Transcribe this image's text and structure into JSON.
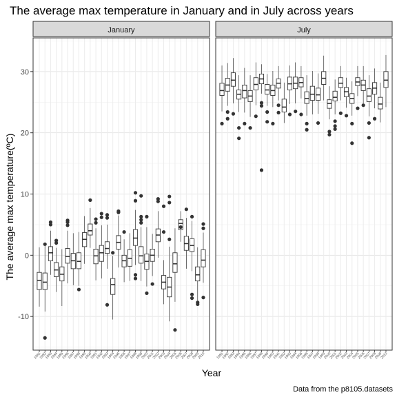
{
  "chart_data": {
    "type": "boxplot",
    "title": "The average max temperature in January and in July across years",
    "xlabel": "Year",
    "ylabel": "The average max temperature(ºC)",
    "caption": "Data from the p8105.datasets",
    "ylim": [
      -15.5,
      35.5
    ],
    "yticks": [
      -10,
      0,
      10,
      20,
      30
    ],
    "grid": true,
    "categories": [
      "1981",
      "1982",
      "1983",
      "1984",
      "1985",
      "1986",
      "1987",
      "1988",
      "1989",
      "1990",
      "1991",
      "1992",
      "1993",
      "1994",
      "1995",
      "1996",
      "1997",
      "1998",
      "1999",
      "2000",
      "2001",
      "2002",
      "2003",
      "2004",
      "2005",
      "2006",
      "2007",
      "2008",
      "2009",
      "2010"
    ],
    "facets": [
      {
        "name": "January",
        "boxes": [
          {
            "year": "1981",
            "q1": -5.6,
            "median": -4.1,
            "q3": -2.8,
            "lower": -8.4,
            "upper": 1.3,
            "outliers": []
          },
          {
            "year": "1982",
            "q1": -5.6,
            "median": -4.4,
            "q3": -2.9,
            "lower": -9.2,
            "upper": 1.5,
            "outliers": [
              -13.5,
              1.8
            ]
          },
          {
            "year": "1983",
            "q1": -0.9,
            "median": 0.4,
            "q3": 1.4,
            "lower": -3.2,
            "upper": 4.0,
            "outliers": [
              5.0,
              5.4
            ]
          },
          {
            "year": "1984",
            "q1": -3.5,
            "median": -2.4,
            "q3": -1.2,
            "lower": -6.0,
            "upper": 1.2,
            "outliers": [
              2.0,
              2.4
            ]
          },
          {
            "year": "1985",
            "q1": -4.2,
            "median": -3.1,
            "q3": -1.9,
            "lower": -8.3,
            "upper": 1.0,
            "outliers": []
          },
          {
            "year": "1986",
            "q1": -1.3,
            "median": -0.2,
            "q3": 1.1,
            "lower": -4.6,
            "upper": 4.0,
            "outliers": [
              4.9,
              5.4,
              5.7
            ]
          },
          {
            "year": "1987",
            "q1": -2.2,
            "median": -0.9,
            "q3": 0.3,
            "lower": -4.9,
            "upper": 3.6,
            "outliers": []
          },
          {
            "year": "1988",
            "q1": -2.2,
            "median": -1.0,
            "q3": 0.4,
            "lower": -5.0,
            "upper": 3.8,
            "outliers": [
              -5.6
            ]
          },
          {
            "year": "1989",
            "q1": 1.4,
            "median": 2.6,
            "q3": 3.7,
            "lower": -1.4,
            "upper": 6.4,
            "outliers": []
          },
          {
            "year": "1990",
            "q1": 3.3,
            "median": 4.0,
            "q3": 5.1,
            "lower": 1.2,
            "upper": 7.7,
            "outliers": [
              9.0
            ]
          },
          {
            "year": "1991",
            "q1": -1.4,
            "median": -0.1,
            "q3": 1.0,
            "lower": -4.1,
            "upper": 4.4,
            "outliers": [
              5.3,
              5.9
            ]
          },
          {
            "year": "1992",
            "q1": -1.0,
            "median": 0.4,
            "q3": 1.6,
            "lower": -3.8,
            "upper": 4.9,
            "outliers": [
              6.2,
              6.8
            ]
          },
          {
            "year": "1993",
            "q1": 0.3,
            "median": 1.1,
            "q3": 2.2,
            "lower": -2.2,
            "upper": 5.0,
            "outliers": [
              -8.1,
              6.1,
              6.6
            ]
          },
          {
            "year": "1994",
            "q1": -6.4,
            "median": -4.8,
            "q3": -3.8,
            "lower": -10.5,
            "upper": -0.1,
            "outliers": [
              0.4
            ]
          },
          {
            "year": "1995",
            "q1": 1.0,
            "median": 2.1,
            "q3": 3.2,
            "lower": -2.0,
            "upper": 6.5,
            "outliers": [
              7.0,
              7.2
            ]
          },
          {
            "year": "1996",
            "q1": -1.9,
            "median": -0.9,
            "q3": 0.0,
            "lower": -4.4,
            "upper": 2.6,
            "outliers": [
              3.8
            ]
          },
          {
            "year": "1997",
            "q1": -1.8,
            "median": -0.5,
            "q3": 0.9,
            "lower": -4.2,
            "upper": 3.6,
            "outliers": []
          },
          {
            "year": "1998",
            "q1": 1.6,
            "median": 2.8,
            "q3": 4.2,
            "lower": -1.6,
            "upper": 7.4,
            "outliers": [
              -3.2,
              -3.8,
              8.9,
              10.2
            ]
          },
          {
            "year": "1999",
            "q1": -1.3,
            "median": -0.1,
            "q3": 1.4,
            "lower": -4.2,
            "upper": 4.6,
            "outliers": [
              5.3,
              5.8,
              6.3,
              9.7
            ]
          },
          {
            "year": "2000",
            "q1": -2.3,
            "median": -1.0,
            "q3": 0.2,
            "lower": -5.1,
            "upper": 4.6,
            "outliers": [
              -6.2,
              6.3
            ]
          },
          {
            "year": "2001",
            "q1": -1.0,
            "median": 0.0,
            "q3": 1.0,
            "lower": -3.4,
            "upper": 3.5,
            "outliers": [
              -4.7
            ]
          },
          {
            "year": "2002",
            "q1": 2.2,
            "median": 3.3,
            "q3": 4.3,
            "lower": -0.4,
            "upper": 7.2,
            "outliers": [
              8.8,
              9.2
            ]
          },
          {
            "year": "2003",
            "q1": -5.5,
            "median": -4.4,
            "q3": -3.3,
            "lower": -8.0,
            "upper": -0.8,
            "outliers": [
              3.8,
              8.0
            ]
          },
          {
            "year": "2004",
            "q1": -6.8,
            "median": -5.2,
            "q3": -3.6,
            "lower": -10.8,
            "upper": 1.4,
            "outliers": [
              2.6,
              8.6,
              9.6
            ]
          },
          {
            "year": "2005",
            "q1": -2.8,
            "median": -1.4,
            "q3": 0.4,
            "lower": -7.6,
            "upper": 4.4,
            "outliers": [
              -12.2
            ]
          },
          {
            "year": "2006",
            "q1": 4.2,
            "median": 5.2,
            "q3": 5.8,
            "lower": 2.2,
            "upper": 7.2,
            "outliers": [
              4.6
            ]
          },
          {
            "year": "2007",
            "q1": 0.8,
            "median": 1.9,
            "q3": 3.1,
            "lower": -2.2,
            "upper": 6.1,
            "outliers": [
              7.5
            ]
          },
          {
            "year": "2008",
            "q1": 0.6,
            "median": 1.6,
            "q3": 2.7,
            "lower": -2.6,
            "upper": 5.6,
            "outliers": [
              -6.4,
              -7.0,
              6.3
            ]
          },
          {
            "year": "2009",
            "q1": -4.2,
            "median": -3.2,
            "q3": -1.9,
            "lower": -7.4,
            "upper": 1.3,
            "outliers": [
              -7.7,
              -8.0
            ]
          },
          {
            "year": "2010",
            "q1": -1.9,
            "median": -0.8,
            "q3": 0.9,
            "lower": -4.5,
            "upper": 3.7,
            "outliers": [
              -6.9,
              4.4,
              5.1
            ]
          }
        ]
      },
      {
        "name": "July",
        "boxes": [
          {
            "year": "1981",
            "q1": 26.1,
            "median": 26.9,
            "q3": 28.1,
            "lower": 23.5,
            "upper": 31.0,
            "outliers": [
              21.5
            ]
          },
          {
            "year": "1982",
            "q1": 26.8,
            "median": 27.8,
            "q3": 28.9,
            "lower": 24.4,
            "upper": 31.4,
            "outliers": [
              22.3,
              23.4
            ]
          },
          {
            "year": "1983",
            "q1": 27.6,
            "median": 28.6,
            "q3": 29.8,
            "lower": 24.8,
            "upper": 32.2,
            "outliers": [
              23.1
            ]
          },
          {
            "year": "1984",
            "q1": 25.5,
            "median": 26.3,
            "q3": 27.0,
            "lower": 23.4,
            "upper": 29.4,
            "outliers": [
              19.1,
              20.8
            ]
          },
          {
            "year": "1985",
            "q1": 25.7,
            "median": 26.9,
            "q3": 27.8,
            "lower": 23.3,
            "upper": 30.6,
            "outliers": [
              21.5
            ]
          },
          {
            "year": "1986",
            "q1": 25.1,
            "median": 26.0,
            "q3": 26.9,
            "lower": 22.6,
            "upper": 29.4,
            "outliers": [
              20.8
            ]
          },
          {
            "year": "1987",
            "q1": 27.0,
            "median": 27.9,
            "q3": 29.0,
            "lower": 24.5,
            "upper": 31.5,
            "outliers": [
              22.7
            ]
          },
          {
            "year": "1988",
            "q1": 28.0,
            "median": 28.8,
            "q3": 29.6,
            "lower": 26.4,
            "upper": 31.2,
            "outliers": [
              13.9,
              24.4,
              24.9
            ]
          },
          {
            "year": "1989",
            "q1": 26.3,
            "median": 27.0,
            "q3": 27.9,
            "lower": 24.4,
            "upper": 29.6,
            "outliers": [
              21.8,
              23.4
            ]
          },
          {
            "year": "1990",
            "q1": 26.1,
            "median": 26.9,
            "q3": 27.8,
            "lower": 24.2,
            "upper": 30.1,
            "outliers": [
              21.5
            ]
          },
          {
            "year": "1991",
            "q1": 27.3,
            "median": 28.1,
            "q3": 28.8,
            "lower": 25.3,
            "upper": 30.9,
            "outliers": [
              23.3,
              24.5
            ]
          },
          {
            "year": "1992",
            "q1": 23.4,
            "median": 24.2,
            "q3": 25.5,
            "lower": 21.6,
            "upper": 28.2,
            "outliers": []
          },
          {
            "year": "1993",
            "q1": 27.0,
            "median": 28.0,
            "q3": 29.1,
            "lower": 24.7,
            "upper": 31.0,
            "outliers": [
              23.0
            ]
          },
          {
            "year": "1994",
            "q1": 27.2,
            "median": 28.1,
            "q3": 29.1,
            "lower": 24.8,
            "upper": 31.5,
            "outliers": [
              23.5
            ]
          },
          {
            "year": "1995",
            "q1": 27.5,
            "median": 28.2,
            "q3": 29.0,
            "lower": 25.6,
            "upper": 30.9,
            "outliers": [
              23.0
            ]
          },
          {
            "year": "1996",
            "q1": 24.8,
            "median": 25.6,
            "q3": 26.7,
            "lower": 22.8,
            "upper": 29.4,
            "outliers": [
              20.5,
              21.5
            ]
          },
          {
            "year": "1997",
            "q1": 25.3,
            "median": 26.3,
            "q3": 27.6,
            "lower": 23.0,
            "upper": 30.1,
            "outliers": []
          },
          {
            "year": "1998",
            "q1": 25.3,
            "median": 26.2,
            "q3": 27.3,
            "lower": 23.1,
            "upper": 29.7,
            "outliers": [
              21.6
            ]
          },
          {
            "year": "1999",
            "q1": 27.9,
            "median": 28.9,
            "q3": 30.0,
            "lower": 25.3,
            "upper": 32.6,
            "outliers": []
          },
          {
            "year": "2000",
            "q1": 24.0,
            "median": 24.8,
            "q3": 25.4,
            "lower": 22.2,
            "upper": 27.6,
            "outliers": [
              19.7,
              20.2
            ]
          },
          {
            "year": "2001",
            "q1": 25.2,
            "median": 25.8,
            "q3": 26.8,
            "lower": 23.0,
            "upper": 28.7,
            "outliers": [
              20.6,
              21.1,
              21.9
            ]
          },
          {
            "year": "2002",
            "q1": 27.4,
            "median": 28.1,
            "q3": 29.0,
            "lower": 25.3,
            "upper": 30.9,
            "outliers": [
              23.2
            ]
          },
          {
            "year": "2003",
            "q1": 25.9,
            "median": 26.7,
            "q3": 27.4,
            "lower": 24.1,
            "upper": 29.0,
            "outliers": [
              22.8
            ]
          },
          {
            "year": "2004",
            "q1": 24.8,
            "median": 25.6,
            "q3": 26.4,
            "lower": 22.8,
            "upper": 28.4,
            "outliers": [
              18.3,
              21.5
            ]
          },
          {
            "year": "2005",
            "q1": 27.7,
            "median": 28.3,
            "q3": 29.0,
            "lower": 26.0,
            "upper": 30.9,
            "outliers": [
              24.0
            ]
          },
          {
            "year": "2006",
            "q1": 26.9,
            "median": 27.8,
            "q3": 28.6,
            "lower": 24.8,
            "upper": 30.9,
            "outliers": [
              24.5
            ]
          },
          {
            "year": "2007",
            "q1": 25.1,
            "median": 26.0,
            "q3": 27.2,
            "lower": 22.7,
            "upper": 29.4,
            "outliers": [
              19.2,
              21.6
            ]
          },
          {
            "year": "2008",
            "q1": 26.3,
            "median": 27.3,
            "q3": 28.2,
            "lower": 24.0,
            "upper": 30.5,
            "outliers": [
              22.3
            ]
          },
          {
            "year": "2009",
            "q1": 23.9,
            "median": 24.7,
            "q3": 25.8,
            "lower": 21.7,
            "upper": 28.2,
            "outliers": []
          },
          {
            "year": "2010",
            "q1": 27.4,
            "median": 28.6,
            "q3": 30.0,
            "lower": 24.2,
            "upper": 32.7,
            "outliers": []
          }
        ]
      }
    ]
  }
}
